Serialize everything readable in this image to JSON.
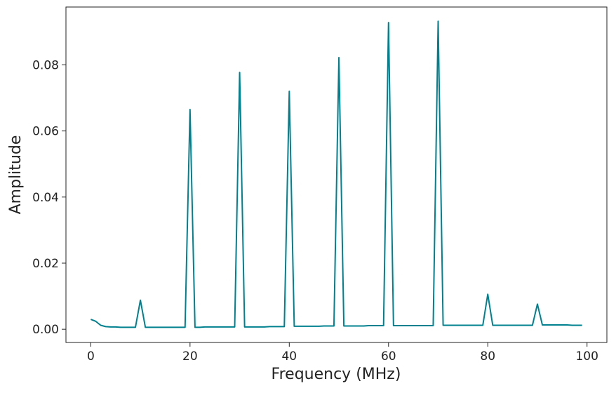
{
  "chart_data": {
    "type": "line",
    "title": "",
    "xlabel": "Frequency (MHz)",
    "ylabel": "Amplitude",
    "xlim": [
      -5,
      104
    ],
    "ylim": [
      -0.004,
      0.0975
    ],
    "xticks": [
      0,
      20,
      40,
      60,
      80,
      100
    ],
    "xtick_labels": [
      "0",
      "20",
      "40",
      "60",
      "80",
      "100"
    ],
    "yticks": [
      0.0,
      0.02,
      0.04,
      0.06,
      0.08
    ],
    "ytick_labels": [
      "0.00",
      "0.02",
      "0.04",
      "0.06",
      "0.08"
    ],
    "grid": false,
    "legend": "none",
    "line_color": "#00818f",
    "series": [
      {
        "x": [
          0,
          1,
          2,
          3,
          4,
          5,
          6,
          7,
          8,
          9,
          10,
          11,
          12,
          13,
          14,
          15,
          16,
          17,
          18,
          19,
          20,
          21,
          22,
          23,
          24,
          25,
          26,
          27,
          28,
          29,
          30,
          31,
          32,
          33,
          34,
          35,
          36,
          37,
          38,
          39,
          40,
          41,
          42,
          43,
          44,
          45,
          46,
          47,
          48,
          49,
          50,
          51,
          52,
          53,
          54,
          55,
          56,
          57,
          58,
          59,
          60,
          61,
          62,
          63,
          64,
          65,
          66,
          67,
          68,
          69,
          70,
          71,
          72,
          73,
          74,
          75,
          76,
          77,
          78,
          79,
          80,
          81,
          82,
          83,
          84,
          85,
          86,
          87,
          88,
          89,
          90,
          91,
          92,
          93,
          94,
          95,
          96,
          97,
          98,
          99
        ],
        "y": [
          0.003,
          0.0024,
          0.0012,
          0.0008,
          0.0007,
          0.0007,
          0.0006,
          0.0006,
          0.0006,
          0.0006,
          0.0088,
          0.0006,
          0.0006,
          0.0006,
          0.0006,
          0.0006,
          0.0006,
          0.0006,
          0.0006,
          0.0006,
          0.0665,
          0.0006,
          0.0006,
          0.0007,
          0.0007,
          0.0007,
          0.0007,
          0.0007,
          0.0007,
          0.0007,
          0.0777,
          0.0007,
          0.0007,
          0.0007,
          0.0007,
          0.0007,
          0.0008,
          0.0008,
          0.0008,
          0.0008,
          0.072,
          0.0009,
          0.0009,
          0.0009,
          0.0009,
          0.0009,
          0.0009,
          0.001,
          0.001,
          0.001,
          0.0822,
          0.001,
          0.001,
          0.001,
          0.001,
          0.001,
          0.0011,
          0.0011,
          0.0011,
          0.0011,
          0.0928,
          0.0011,
          0.0011,
          0.0011,
          0.0011,
          0.0011,
          0.0011,
          0.0011,
          0.0011,
          0.0011,
          0.0932,
          0.0012,
          0.0012,
          0.0012,
          0.0012,
          0.0012,
          0.0012,
          0.0012,
          0.0012,
          0.0012,
          0.0106,
          0.0012,
          0.0012,
          0.0012,
          0.0012,
          0.0012,
          0.0012,
          0.0012,
          0.0012,
          0.0012,
          0.0076,
          0.0013,
          0.0013,
          0.0013,
          0.0013,
          0.0013,
          0.0013,
          0.0012,
          0.0012,
          0.0012
        ]
      }
    ]
  }
}
